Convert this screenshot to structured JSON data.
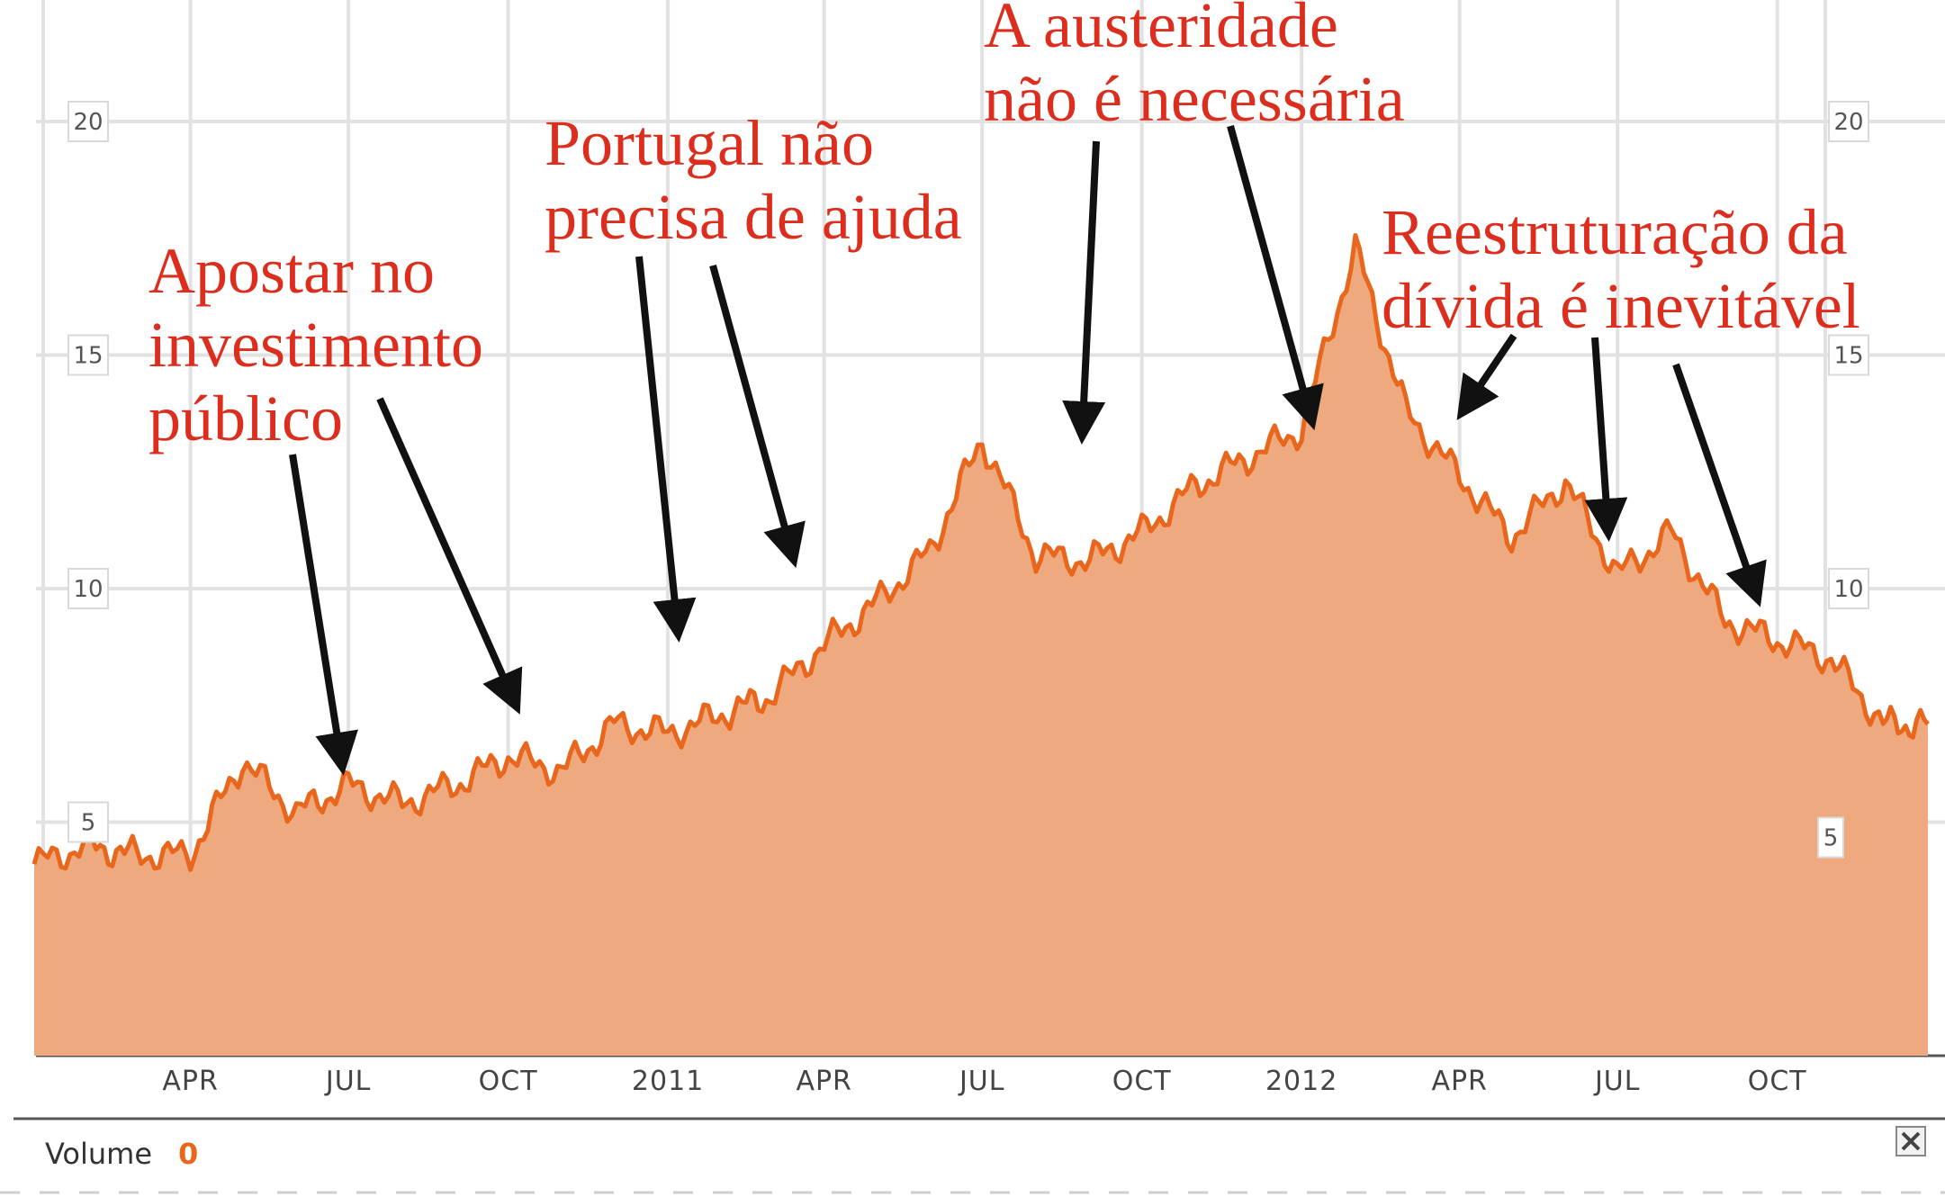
{
  "colors": {
    "area_fill": "#efa97e",
    "line": "#e8671d",
    "annotation": "#dc2e1e",
    "arrow": "#111111",
    "grid": "#e2e2e2"
  },
  "chart_data": {
    "type": "area",
    "title": "",
    "xlabel": "",
    "ylabel": "",
    "ylim": [
      0,
      22
    ],
    "yticks": [
      "20",
      "15",
      "10",
      "5"
    ],
    "xticks": [
      "APR",
      "JUL",
      "OCT",
      "2011",
      "APR",
      "JUL",
      "OCT",
      "2012",
      "APR",
      "JUL",
      "OCT"
    ],
    "grid": true,
    "series": [
      {
        "x": [
          "2010-01",
          "2010-02",
          "2010-03",
          "2010-04",
          "2010-05",
          "2010-06",
          "2010-07",
          "2010-08",
          "2010-09",
          "2010-10",
          "2010-11",
          "2010-12",
          "2011-01",
          "2011-02",
          "2011-03",
          "2011-04",
          "2011-05",
          "2011-06",
          "2011-07",
          "2011-08",
          "2011-09",
          "2011-10",
          "2011-11",
          "2011-12",
          "2012-01",
          "2012-02",
          "2012-03",
          "2012-04",
          "2012-05",
          "2012-06",
          "2012-07",
          "2012-08",
          "2012-09",
          "2012-10",
          "2012-11",
          "2012-12"
        ],
        "values": [
          4.1,
          4.5,
          4.3,
          4.3,
          6.3,
          5.2,
          5.8,
          5.4,
          5.8,
          6.4,
          6.1,
          7.1,
          6.9,
          7.3,
          7.7,
          8.8,
          9.7,
          10.8,
          13.2,
          10.7,
          10.6,
          11.2,
          12.2,
          12.8,
          13.4,
          17.3,
          13.8,
          12.4,
          11.1,
          12.3,
          10.3,
          11.2,
          9.3,
          8.9,
          8.5,
          7.1
        ]
      }
    ],
    "annotations": [
      {
        "lines": [
          "Apostar no",
          "investimento",
          "público"
        ]
      },
      {
        "lines": [
          "Portugal não",
          "precisa de ajuda"
        ]
      },
      {
        "lines": [
          "A austeridade",
          "não é necessária"
        ]
      },
      {
        "lines": [
          "Reestruturação da",
          "dívida é inevitável"
        ]
      }
    ]
  },
  "volume": {
    "label": "Volume",
    "value": "0"
  }
}
